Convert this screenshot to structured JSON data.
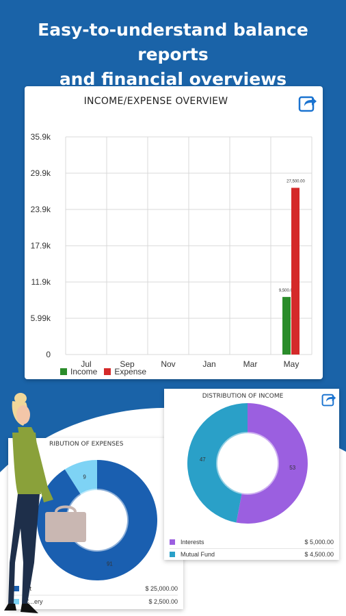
{
  "hero": {
    "line1": "Easy-to-understand balance reports",
    "line2": "and financial overviews"
  },
  "colors": {
    "background": "#1a63a8",
    "income": "#2a8c2a",
    "expense": "#d42a2a",
    "interests": "#9b5fe0",
    "mutual_fund": "#2aa0c8",
    "expense_main": "#1a5fb0",
    "expense_light": "#7ed3f5"
  },
  "chart_data": [
    {
      "type": "bar",
      "title": "INCOME/EXPENSE OVERVIEW",
      "categories": [
        "Jul",
        "Sep",
        "Nov",
        "Jan",
        "Mar",
        "May"
      ],
      "yticks": [
        "0",
        "5.99k",
        "11.9k",
        "17.9k",
        "23.9k",
        "29.9k",
        "35.9k"
      ],
      "ylim": [
        0,
        35900
      ],
      "series": [
        {
          "name": "Income",
          "values": [
            0,
            0,
            0,
            0,
            0,
            9500
          ],
          "labels": [
            "",
            "",
            "",
            "",
            "",
            "9,500.00"
          ]
        },
        {
          "name": "Expense",
          "values": [
            0,
            0,
            0,
            0,
            0,
            27500
          ],
          "labels": [
            "",
            "",
            "",
            "",
            "",
            "27,500.00"
          ]
        }
      ],
      "grid": true,
      "legend": "bottom-left"
    },
    {
      "type": "pie",
      "title": "DISTRIBUTION OF INCOME",
      "slices": [
        {
          "name": "Interests",
          "value": 53,
          "amount": "$ 5,000.00"
        },
        {
          "name": "Mutual Fund",
          "value": 47,
          "amount": "$ 4,500.00"
        }
      ]
    },
    {
      "type": "pie",
      "title": "RIBUTION OF EXPENSES",
      "slices": [
        {
          "name": "...t",
          "value": 91,
          "amount": "$ 25,000.00"
        },
        {
          "name": "C...ery",
          "value": 9,
          "amount": "$ 2,500.00"
        }
      ]
    }
  ],
  "icons": {
    "share": "share-icon"
  }
}
